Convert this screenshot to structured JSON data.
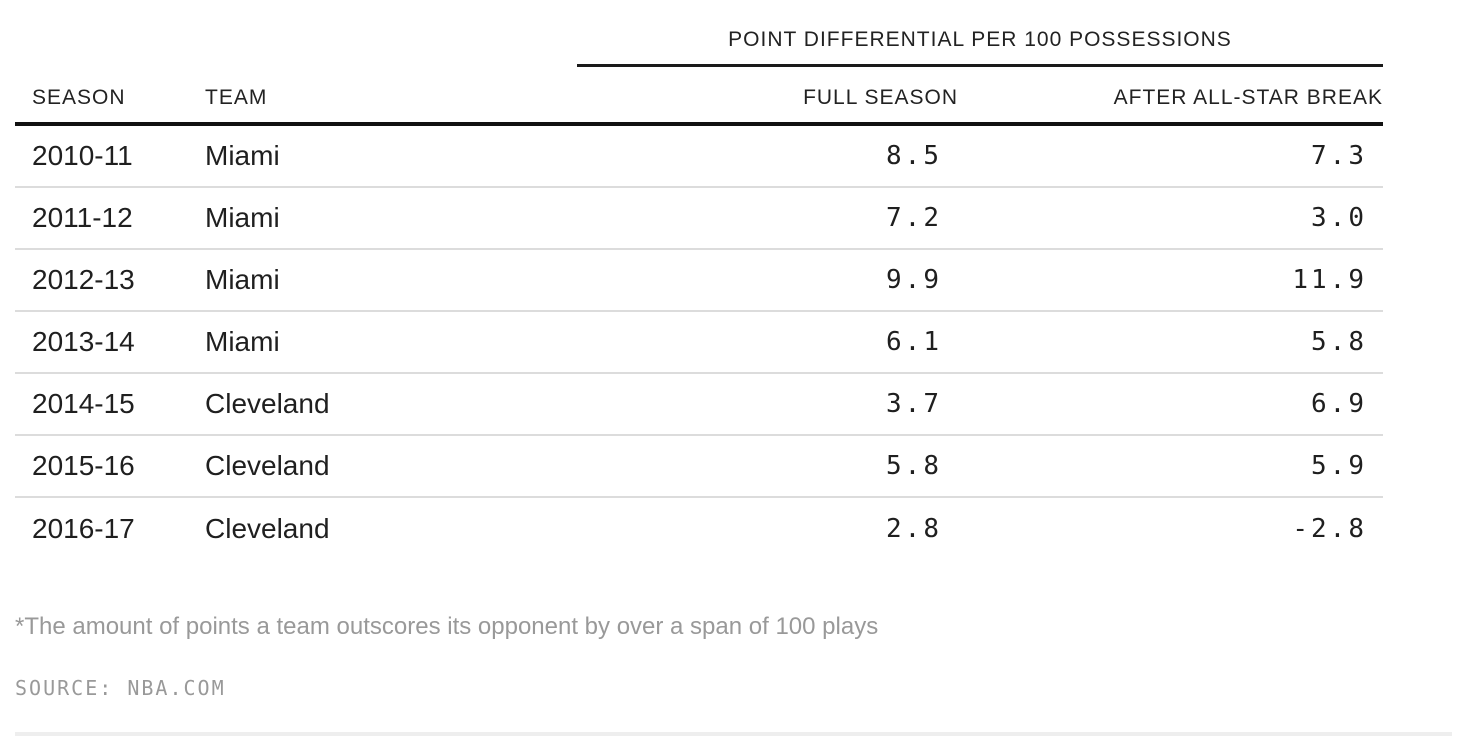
{
  "table": {
    "spanner_title": "POINT DIFFERENTIAL PER 100 POSSESSIONS",
    "columns": {
      "season": "SEASON",
      "team": "TEAM",
      "full_season": "FULL SEASON",
      "after_break": "AFTER ALL-STAR BREAK"
    },
    "rows": [
      {
        "season": "2010-11",
        "team": "Miami",
        "full_season": "8.5",
        "after_break": "7.3"
      },
      {
        "season": "2011-12",
        "team": "Miami",
        "full_season": "7.2",
        "after_break": "3.0"
      },
      {
        "season": "2012-13",
        "team": "Miami",
        "full_season": "9.9",
        "after_break": "11.9"
      },
      {
        "season": "2013-14",
        "team": "Miami",
        "full_season": "6.1",
        "after_break": "5.8"
      },
      {
        "season": "2014-15",
        "team": "Cleveland",
        "full_season": "3.7",
        "after_break": "6.9"
      },
      {
        "season": "2015-16",
        "team": "Cleveland",
        "full_season": "5.8",
        "after_break": "5.9"
      },
      {
        "season": "2016-17",
        "team": "Cleveland",
        "full_season": "2.8",
        "after_break": "-2.8"
      }
    ]
  },
  "footnote": "*The amount of points a team outscores its opponent by over a span of 100 plays",
  "source": "SOURCE: NBA.COM",
  "colors": {
    "text": "#222222",
    "muted_text": "#999999",
    "heavy_rule": "#111111",
    "row_separator": "#dcdcdc",
    "bottom_rule": "#eeeeee"
  },
  "chart_data": {
    "type": "table",
    "title": "POINT DIFFERENTIAL PER 100 POSSESSIONS",
    "columns": [
      "SEASON",
      "TEAM",
      "FULL SEASON",
      "AFTER ALL-STAR BREAK"
    ],
    "rows": [
      [
        "2010-11",
        "Miami",
        8.5,
        7.3
      ],
      [
        "2011-12",
        "Miami",
        7.2,
        3.0
      ],
      [
        "2012-13",
        "Miami",
        9.9,
        11.9
      ],
      [
        "2013-14",
        "Miami",
        6.1,
        5.8
      ],
      [
        "2014-15",
        "Cleveland",
        3.7,
        6.9
      ],
      [
        "2015-16",
        "Cleveland",
        5.8,
        5.9
      ],
      [
        "2016-17",
        "Cleveland",
        2.8,
        -2.8
      ]
    ],
    "footnote": "*The amount of points a team outscores its opponent by over a span of 100 plays",
    "source": "SOURCE: NBA.COM"
  }
}
